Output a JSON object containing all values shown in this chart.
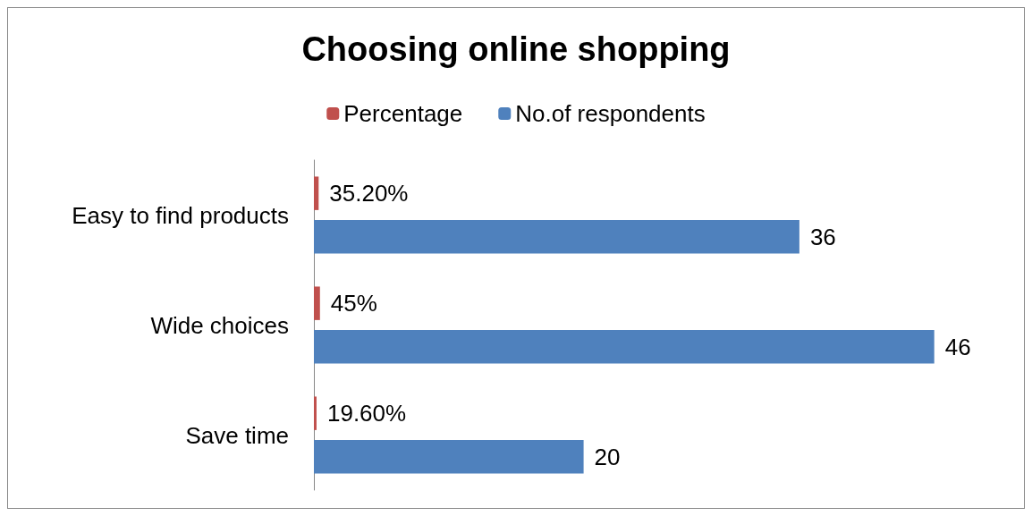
{
  "chart_data": {
    "type": "bar",
    "title": "Choosing online shopping",
    "orientation": "horizontal",
    "categories": [
      "Easy to find products",
      "Wide choices",
      "Save time"
    ],
    "series": [
      {
        "name": "Percentage",
        "color": "#c0504d",
        "values": [
          0.352,
          0.45,
          0.196
        ],
        "value_labels": [
          "35.20%",
          "45%",
          "19.60%"
        ]
      },
      {
        "name": "No.of respondents",
        "color": "#4f81bd",
        "values": [
          36,
          46,
          20
        ],
        "value_labels": [
          "36",
          "46",
          "20"
        ]
      }
    ],
    "legend": "top"
  }
}
